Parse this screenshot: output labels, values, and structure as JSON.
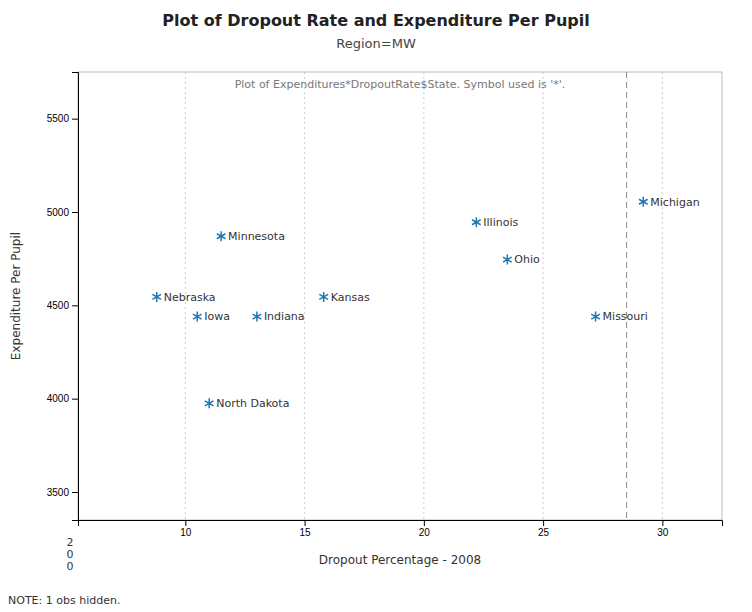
{
  "chart_data": {
    "type": "scatter",
    "title": "Plot of Dropout Rate and Expenditure Per Pupil",
    "subtitle": "Region=MW",
    "inner_title": "Plot of Expenditures*DropoutRate$State.  Symbol used is '*'.",
    "xlabel": "Dropout Percentage - 2008",
    "ylabel": "Expenditure Per Pupil",
    "note": "NOTE: 1 obs hidden.",
    "annotations": [
      {
        "text": "200"
      }
    ],
    "labels": [
      "Michigan",
      "Illinois",
      "Minnesota",
      "Ohio",
      "Nebraska",
      "Kansas",
      "Iowa",
      "Indiana",
      "Missouri",
      "North Dakota"
    ],
    "x": [
      29.2,
      22.2,
      11.5,
      23.5,
      8.8,
      15.8,
      10.5,
      13.0,
      27.2,
      11.0
    ],
    "values": [
      5055,
      4945,
      4870,
      4745,
      4545,
      4545,
      4440,
      4440,
      4440,
      3975
    ],
    "marker": "asterisk",
    "xlim": [
      5.5,
      32.5
    ],
    "ylim": [
      3350,
      5750
    ],
    "xticks": [
      10,
      15,
      20,
      25,
      30
    ],
    "yticks": [
      5500,
      5000,
      4500,
      4000,
      3500
    ],
    "grid": "x",
    "reference_lines": [
      {
        "x": 28.5
      }
    ]
  }
}
